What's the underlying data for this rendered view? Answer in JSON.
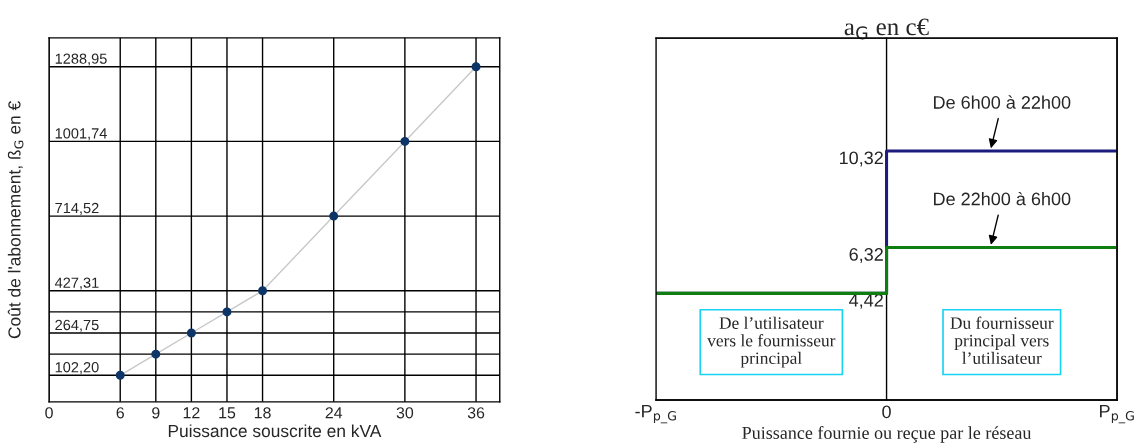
{
  "chart_data": [
    {
      "type": "line",
      "xlabel": "Puissance souscrite en kVA",
      "ylabel": "Coût de l'abonnement, ß$_{G}$ en €",
      "x": [
        6,
        9,
        12,
        15,
        18,
        24,
        30,
        36
      ],
      "series": [
        {
          "color": "#0d3567",
          "values": [
            102.2,
            183.5,
            264.75,
            346,
            427.31,
            714.52,
            1001.74,
            1288.95
          ]
        }
      ],
      "xlim": [
        0,
        38
      ],
      "ylim": [
        0,
        1400
      ],
      "xticks": [
        0,
        6,
        9,
        12,
        15,
        18,
        24,
        30,
        36
      ],
      "yticks": [
        {
          "value": 102.2,
          "label": "102,20"
        },
        {
          "value": 183.5,
          "label": null
        },
        {
          "value": 264.75,
          "label": "264,75"
        },
        {
          "value": 346,
          "label": null
        },
        {
          "value": 427.31,
          "label": "427,31"
        },
        {
          "value": 714.52,
          "label": "714,52"
        },
        {
          "value": 1001.74,
          "label": "1001,74"
        },
        {
          "value": 1288.95,
          "label": "1288,95"
        }
      ],
      "grid": true,
      "marker": "circle",
      "legend": false
    },
    {
      "type": "step",
      "title": "a$_{G}$ en c€",
      "xlabel": "Puissance fournie ou reçue par le réseau",
      "categories": [
        "-P$_{p_G}$",
        "0",
        "P$_{p_G}$"
      ],
      "series": [
        {
          "name": "De 6h00 à 22h00",
          "color": "#1c1c7c",
          "values": [
            4.42,
            10.32,
            10.32
          ]
        },
        {
          "name": "De 22h00 à 6h00",
          "color": "#0f7d0f",
          "values": [
            4.42,
            6.32,
            6.32
          ]
        }
      ],
      "ylim": [
        0,
        15
      ],
      "yticks": [
        {
          "value": 4.42,
          "label": "4,42"
        },
        {
          "value": 6.32,
          "label": "6,32"
        },
        {
          "value": 10.32,
          "label": "10,32"
        }
      ],
      "annotations": [
        "De l’utilisateur\nvers le fournisseur\nprincipal",
        "Du fournisseur\nprincipal vers\nl’utilisateur"
      ],
      "legend": false,
      "marker": "none"
    }
  ]
}
